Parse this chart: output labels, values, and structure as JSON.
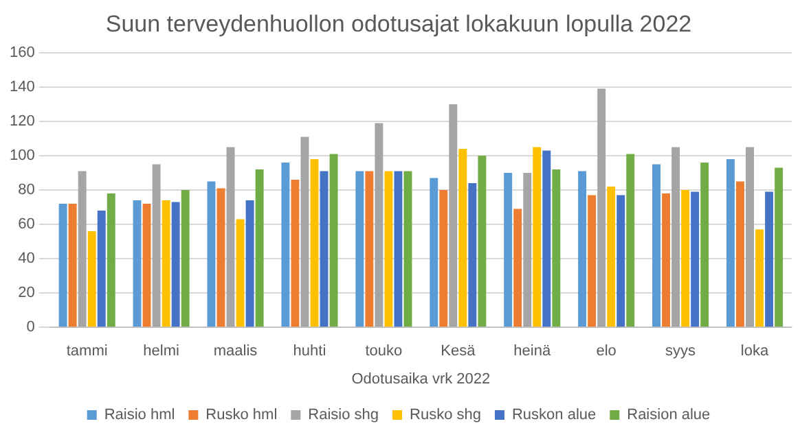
{
  "chart_data": {
    "type": "bar",
    "title": "Suun terveydenhuollon odotusajat lokakuun lopulla 2022",
    "xlabel": "Odotusaika vrk 2022",
    "categories": [
      "tammi",
      "helmi",
      "maalis",
      "huhti",
      "touko",
      "Kesä",
      "heinä",
      "elo",
      "syys",
      "loka"
    ],
    "series": [
      {
        "name": "Raisio hml",
        "color": "#5b9bd5",
        "values": [
          72,
          74,
          85,
          96,
          91,
          87,
          90,
          91,
          95,
          98
        ]
      },
      {
        "name": "Rusko hml",
        "color": "#ed7d31",
        "values": [
          72,
          72,
          81,
          86,
          91,
          80,
          69,
          77,
          78,
          85
        ]
      },
      {
        "name": "Raisio shg",
        "color": "#a5a5a5",
        "values": [
          91,
          95,
          105,
          111,
          119,
          130,
          90,
          139,
          105,
          105
        ]
      },
      {
        "name": "Rusko shg",
        "color": "#ffc000",
        "values": [
          56,
          74,
          63,
          98,
          91,
          104,
          105,
          82,
          80,
          57
        ]
      },
      {
        "name": "Ruskon alue",
        "color": "#4472c4",
        "values": [
          68,
          73,
          74,
          91,
          91,
          84,
          103,
          77,
          79,
          79
        ]
      },
      {
        "name": "Raision alue",
        "color": "#70ad47",
        "values": [
          78,
          80,
          92,
          101,
          91,
          100,
          92,
          101,
          96,
          93
        ]
      }
    ],
    "ylim": [
      0,
      160
    ],
    "yticks": [
      0,
      20,
      40,
      60,
      80,
      100,
      120,
      140,
      160
    ],
    "grid": "y",
    "legend": "bottom"
  }
}
